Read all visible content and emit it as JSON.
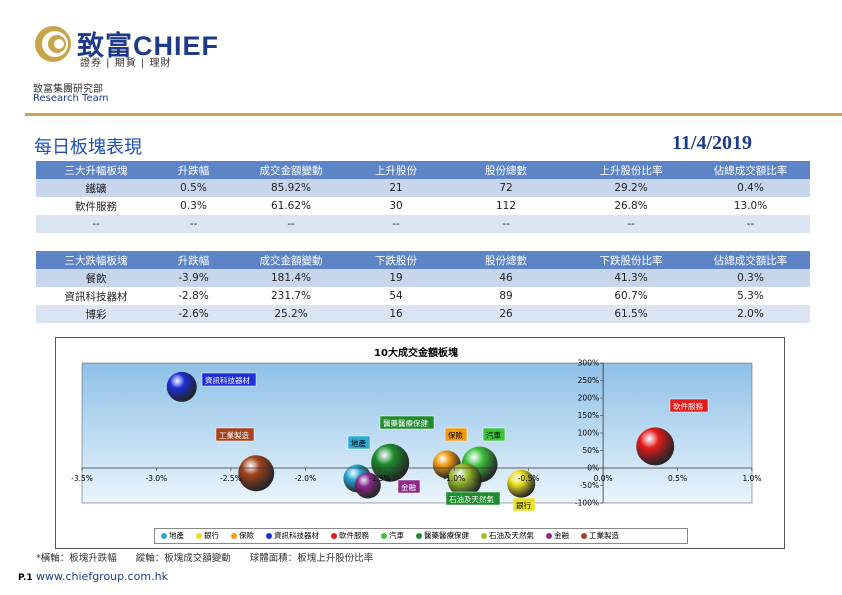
{
  "header": {
    "brand": "致富CHIEF",
    "tagline": "證券 | 期貨 | 理財",
    "dept_cn": "致富集團研究部",
    "dept_en": "Research Team"
  },
  "title": "每日板塊表現",
  "date": "11/4/2019",
  "gainers": {
    "headers": [
      "三大升幅板塊",
      "升跌幅",
      "成交金額變動",
      "上升股份",
      "股份總數",
      "上升股份比率",
      "佔總成交額比率"
    ],
    "rows": [
      [
        "鐵礦",
        "0.5%",
        "85.92%",
        "21",
        "72",
        "29.2%",
        "0.4%"
      ],
      [
        "軟件服務",
        "0.3%",
        "61.62%",
        "30",
        "112",
        "26.8%",
        "13.0%"
      ],
      [
        "--",
        "--",
        "--",
        "--",
        "--",
        "--",
        "--"
      ]
    ]
  },
  "losers": {
    "headers": [
      "三大跌幅板塊",
      "升跌幅",
      "成交金額變動",
      "下跌股份",
      "股份總數",
      "下跌股份比率",
      "佔總成交額比率"
    ],
    "rows": [
      [
        "餐飲",
        "-3.9%",
        "181.4%",
        "19",
        "46",
        "41.3%",
        "0.3%"
      ],
      [
        "資訊科技器材",
        "-2.8%",
        "231.7%",
        "54",
        "89",
        "60.7%",
        "5.3%"
      ],
      [
        "博彩",
        "-2.6%",
        "25.2%",
        "16",
        "26",
        "61.5%",
        "2.0%"
      ]
    ]
  },
  "chart_data": {
    "type": "scatter",
    "title": "10大成交金額板塊",
    "x_range": [
      -3.5,
      1.0
    ],
    "y_range": [
      -100,
      300
    ],
    "x_ticks": [
      "-3.5%",
      "-3.0%",
      "-2.5%",
      "-2.0%",
      "-1.5%",
      "-1.0%",
      "-0.5%",
      "0.0%",
      "0.5%",
      "1.0%"
    ],
    "y_ticks": [
      "300%",
      "250%",
      "200%",
      "150%",
      "100%",
      "50%",
      "0%",
      "-50%",
      "-100%"
    ],
    "series": [
      {
        "name": "地產",
        "x": -1.65,
        "y": -30,
        "r": 14,
        "color": "#29a9d6"
      },
      {
        "name": "銀行",
        "x": -0.55,
        "y": -45,
        "r": 14,
        "color": "#e8e020"
      },
      {
        "name": "保險",
        "x": -1.05,
        "y": 10,
        "r": 14,
        "color": "#f39c12"
      },
      {
        "name": "資訊科技器材",
        "x": -2.83,
        "y": 231.7,
        "r": 15,
        "color": "#1f2fd8"
      },
      {
        "name": "軟件服務",
        "x": 0.35,
        "y": 61.62,
        "r": 19,
        "color": "#e51a1a"
      },
      {
        "name": "汽車",
        "x": -0.83,
        "y": 10,
        "r": 18,
        "color": "#3ec23e"
      },
      {
        "name": "醫藥醫療保健",
        "x": -1.43,
        "y": 15,
        "r": 19,
        "color": "#1e8c2e"
      },
      {
        "name": "石油及天然氣",
        "x": -0.93,
        "y": -35,
        "r": 17,
        "color": "#9bbf2e"
      },
      {
        "name": "金融",
        "x": -1.58,
        "y": -50,
        "r": 13,
        "color": "#8e2a8e"
      },
      {
        "name": "工業製造",
        "x": -2.33,
        "y": -15,
        "r": 18,
        "color": "#a5431c"
      }
    ],
    "labels": [
      {
        "text": "資訊科技器材",
        "color": "#1f2fd8"
      },
      {
        "text": "軟件服務",
        "color": "#e51a1a"
      },
      {
        "text": "工業製造",
        "color": "#a5431c"
      },
      {
        "text": "醫藥醫療保健",
        "color": "#1e8c2e"
      },
      {
        "text": "保險",
        "color": "#f39c12"
      },
      {
        "text": "汽車",
        "color": "#3ec23e"
      },
      {
        "text": "地產",
        "color": "#29a9d6"
      },
      {
        "text": "石油及天然氣",
        "color": "#1e8c2e"
      },
      {
        "text": "金融",
        "color": "#8e2a8e"
      },
      {
        "text": "銀行",
        "color": "#e8e020"
      }
    ]
  },
  "footnote": "*橫軸：板塊升跌幅　　縱軸：板塊成交額變動　　球體面積：板塊上升股份比率",
  "page_num": "P.1",
  "url": "www.chiefgroup.com.hk"
}
